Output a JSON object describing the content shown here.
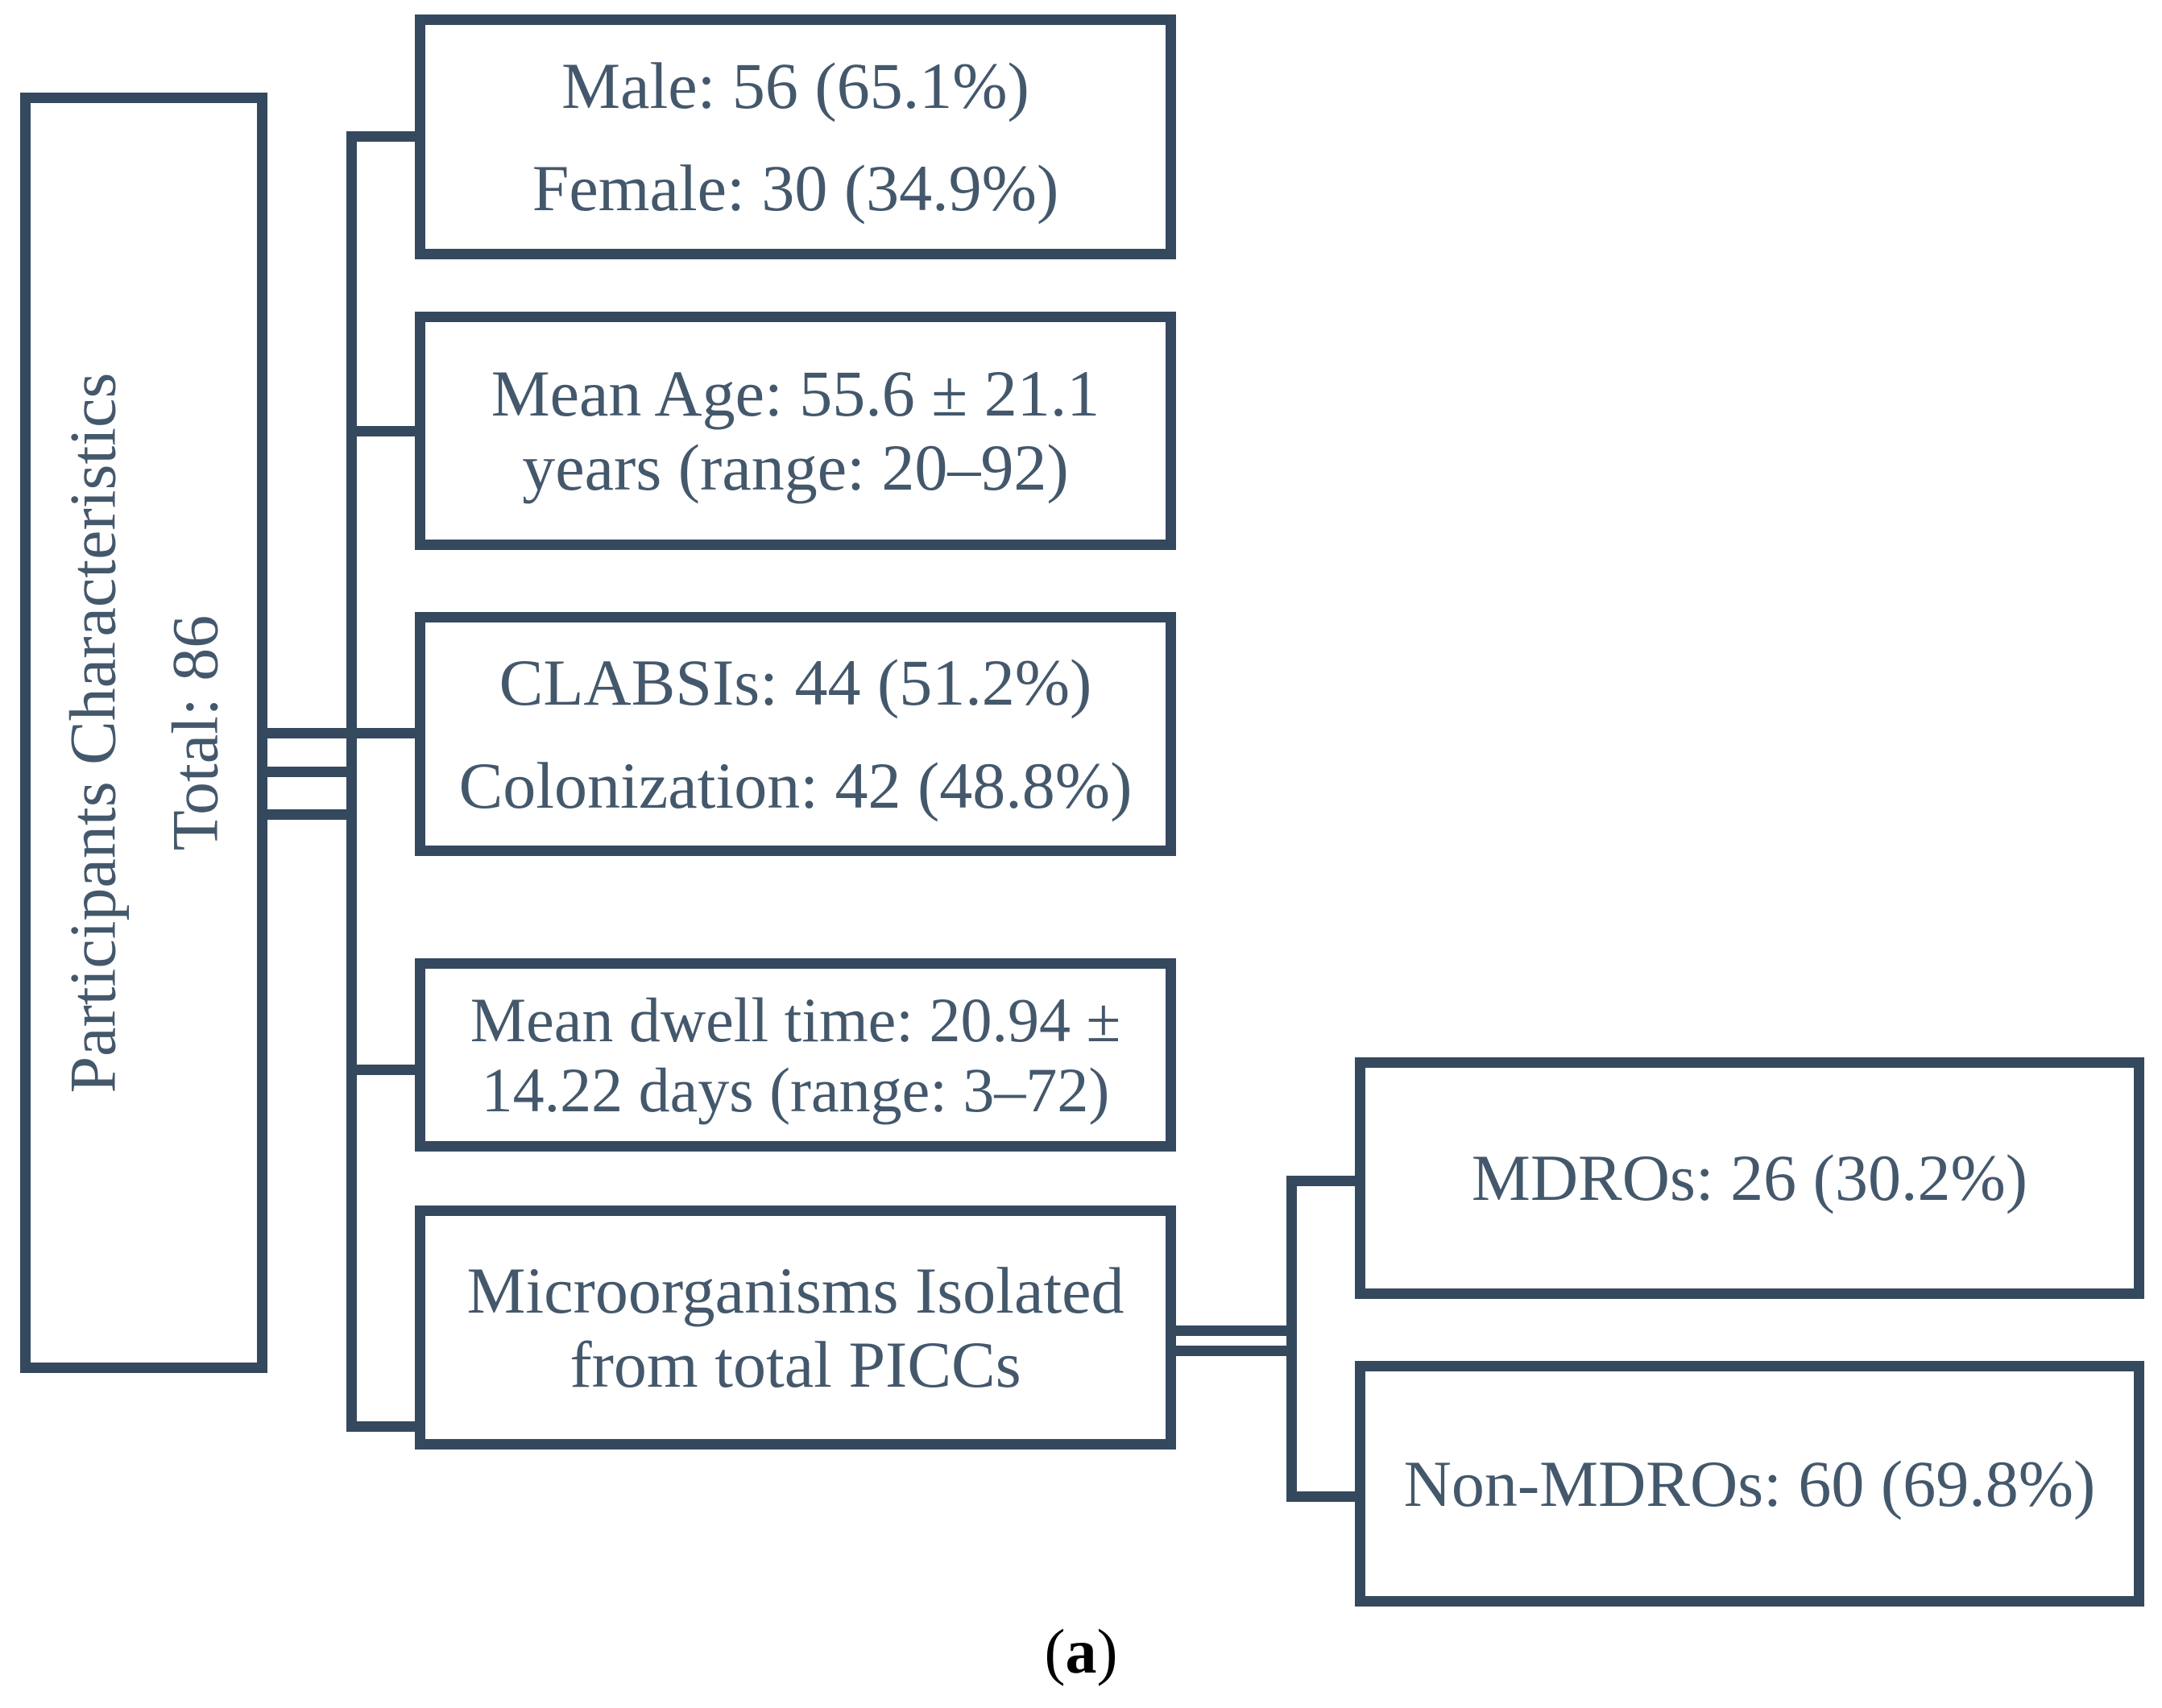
{
  "palette": {
    "line": "#35495e",
    "text": "#44586c",
    "caption": "#000000",
    "background": "#ffffff"
  },
  "root_box": {
    "line1": "Participants Characteristics",
    "line2": "Total: 86"
  },
  "branch_boxes": [
    {
      "id": "gender",
      "lines": [
        "Male: 56 (65.1%)",
        "Female: 30 (34.9%)"
      ]
    },
    {
      "id": "age",
      "lines": [
        "Mean Age: 55.6 ± 21.1",
        "years (range: 20–92)"
      ]
    },
    {
      "id": "infection",
      "lines": [
        "CLABSIs: 44 (51.2%)",
        "Colonization: 42 (48.8%)"
      ]
    },
    {
      "id": "dwell",
      "lines": [
        "Mean dwell time: 20.94 ±",
        "14.22 days (range: 3–72)"
      ]
    },
    {
      "id": "micro",
      "lines": [
        "Microorganisms Isolated",
        "from total PICCs"
      ]
    }
  ],
  "leaf_boxes": [
    {
      "id": "mdro",
      "label": "MDROs: 26 (30.2%)"
    },
    {
      "id": "nonmdro",
      "label": "Non-MDROs: 60 (69.8%)"
    }
  ],
  "caption": {
    "open": "(",
    "letter": "a",
    "close": ")"
  }
}
